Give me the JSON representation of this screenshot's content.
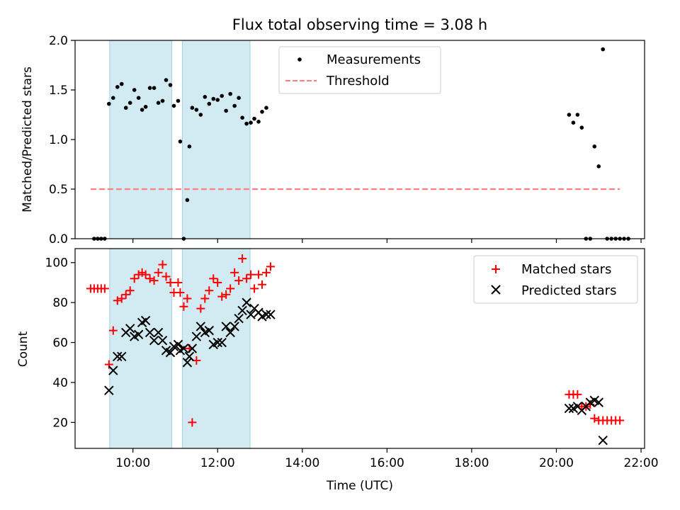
{
  "figure": {
    "title": "Flux total observing time = 3.08 h",
    "colors": {
      "measurement": "#000000",
      "threshold": "#ff7f7f",
      "matched": "#ff0000",
      "predicted": "#000000",
      "shade": "#add8e6"
    }
  },
  "chart_data": [
    {
      "type": "scatter",
      "title": "Flux total observing time = 3.08 h",
      "ylabel": "Matched/Predicted stars",
      "xlabel": "",
      "xlim": [
        "09:00",
        "22:00"
      ],
      "ylim": [
        0,
        2.0
      ],
      "yticks": [
        "0.0",
        "0.5",
        "1.0",
        "1.5",
        "2.0"
      ],
      "grid": false,
      "legend": "top-center",
      "shaded_spans": [
        [
          "09:27",
          "10:55"
        ],
        [
          "11:10",
          "12:46"
        ]
      ],
      "series": [
        {
          "name": "Measurements",
          "kind": "points",
          "color": "#000000",
          "points": [
            [
              "09:05",
              0.0
            ],
            [
              "09:10",
              0.0
            ],
            [
              "09:15",
              0.0
            ],
            [
              "09:20",
              0.0
            ],
            [
              "09:26",
              1.36
            ],
            [
              "09:32",
              1.42
            ],
            [
              "09:38",
              1.53
            ],
            [
              "09:44",
              1.56
            ],
            [
              "09:50",
              1.32
            ],
            [
              "09:56",
              1.37
            ],
            [
              "10:02",
              1.5
            ],
            [
              "10:08",
              1.42
            ],
            [
              "10:13",
              1.3
            ],
            [
              "10:18",
              1.33
            ],
            [
              "10:24",
              1.52
            ],
            [
              "10:30",
              1.52
            ],
            [
              "10:36",
              1.37
            ],
            [
              "10:42",
              1.39
            ],
            [
              "10:47",
              1.6
            ],
            [
              "10:53",
              1.55
            ],
            [
              "10:58",
              1.34
            ],
            [
              "11:04",
              1.39
            ],
            [
              "11:07",
              0.98
            ],
            [
              "11:12",
              0.0
            ],
            [
              "11:17",
              0.39
            ],
            [
              "11:20",
              0.93
            ],
            [
              "11:24",
              1.32
            ],
            [
              "11:30",
              1.3
            ],
            [
              "11:36",
              1.25
            ],
            [
              "11:42",
              1.43
            ],
            [
              "11:48",
              1.36
            ],
            [
              "11:54",
              1.41
            ],
            [
              "12:00",
              1.4
            ],
            [
              "12:06",
              1.44
            ],
            [
              "12:12",
              1.29
            ],
            [
              "12:18",
              1.46
            ],
            [
              "12:24",
              1.34
            ],
            [
              "12:30",
              1.42
            ],
            [
              "12:35",
              1.22
            ],
            [
              "12:41",
              1.16
            ],
            [
              "12:47",
              1.17
            ],
            [
              "12:52",
              1.21
            ],
            [
              "12:58",
              1.18
            ],
            [
              "13:03",
              1.28
            ],
            [
              "13:09",
              1.32
            ],
            [
              "20:18",
              1.25
            ],
            [
              "20:24",
              1.17
            ],
            [
              "20:30",
              1.25
            ],
            [
              "20:36",
              1.12
            ],
            [
              "20:42",
              0.0
            ],
            [
              "20:48",
              0.0
            ],
            [
              "20:54",
              0.93
            ],
            [
              "21:00",
              0.73
            ],
            [
              "21:06",
              1.91
            ],
            [
              "21:12",
              0.0
            ],
            [
              "21:18",
              0.0
            ],
            [
              "21:24",
              0.0
            ],
            [
              "21:30",
              0.0
            ],
            [
              "21:36",
              0.0
            ],
            [
              "21:42",
              0.0
            ]
          ]
        },
        {
          "name": "Threshold",
          "kind": "dashed-line",
          "color": "#ff7f7f",
          "points": [
            [
              "09:00",
              0.5
            ],
            [
              "21:30",
              0.5
            ]
          ]
        }
      ]
    },
    {
      "type": "scatter",
      "title": "",
      "xlabel": "Time (UTC)",
      "ylabel": "Count",
      "xlim": [
        "08:38",
        "22:05"
      ],
      "ylim": [
        7,
        107
      ],
      "yticks": [
        "20",
        "40",
        "60",
        "80",
        "100"
      ],
      "xticks": [
        "10:00",
        "12:00",
        "14:00",
        "16:00",
        "18:00",
        "20:00",
        "22:00"
      ],
      "grid": false,
      "legend": "top-right",
      "shaded_spans": [
        [
          "09:27",
          "10:55"
        ],
        [
          "11:10",
          "12:46"
        ]
      ],
      "series": [
        {
          "name": "Matched stars",
          "kind": "plus",
          "color": "#ff0000",
          "points": [
            [
              "09:00",
              87
            ],
            [
              "09:05",
              87
            ],
            [
              "09:10",
              87
            ],
            [
              "09:15",
              87
            ],
            [
              "09:20",
              87
            ],
            [
              "09:26",
              49
            ],
            [
              "09:32",
              66
            ],
            [
              "09:38",
              81
            ],
            [
              "09:44",
              82
            ],
            [
              "09:50",
              84
            ],
            [
              "09:56",
              86
            ],
            [
              "10:02",
              92
            ],
            [
              "10:08",
              94
            ],
            [
              "10:13",
              95
            ],
            [
              "10:18",
              94
            ],
            [
              "10:24",
              92
            ],
            [
              "10:30",
              91
            ],
            [
              "10:36",
              95
            ],
            [
              "10:42",
              99
            ],
            [
              "10:47",
              93
            ],
            [
              "10:53",
              90
            ],
            [
              "10:58",
              85
            ],
            [
              "11:04",
              90
            ],
            [
              "11:07",
              85
            ],
            [
              "11:12",
              78
            ],
            [
              "11:17",
              82
            ],
            [
              "11:20",
              57
            ],
            [
              "11:24",
              20
            ],
            [
              "11:30",
              51
            ],
            [
              "11:36",
              77
            ],
            [
              "11:42",
              82
            ],
            [
              "11:48",
              86
            ],
            [
              "11:54",
              92
            ],
            [
              "12:00",
              90
            ],
            [
              "12:06",
              83
            ],
            [
              "12:12",
              84
            ],
            [
              "12:18",
              87
            ],
            [
              "12:24",
              95
            ],
            [
              "12:30",
              91
            ],
            [
              "12:35",
              102
            ],
            [
              "12:41",
              92
            ],
            [
              "12:47",
              94
            ],
            [
              "12:52",
              87
            ],
            [
              "12:58",
              94
            ],
            [
              "13:03",
              89
            ],
            [
              "13:09",
              95
            ],
            [
              "13:15",
              98
            ],
            [
              "20:18",
              34
            ],
            [
              "20:24",
              34
            ],
            [
              "20:30",
              34
            ],
            [
              "20:36",
              28
            ],
            [
              "20:42",
              28
            ],
            [
              "20:48",
              29
            ],
            [
              "20:54",
              22
            ],
            [
              "21:00",
              21
            ],
            [
              "21:06",
              21
            ],
            [
              "21:12",
              21
            ],
            [
              "21:18",
              21
            ],
            [
              "21:24",
              21
            ],
            [
              "21:30",
              21
            ]
          ]
        },
        {
          "name": "Predicted stars",
          "kind": "x",
          "color": "#000000",
          "points": [
            [
              "09:26",
              36
            ],
            [
              "09:32",
              46
            ],
            [
              "09:38",
              53
            ],
            [
              "09:44",
              53
            ],
            [
              "09:50",
              65
            ],
            [
              "09:56",
              67
            ],
            [
              "10:02",
              63
            ],
            [
              "10:08",
              64
            ],
            [
              "10:13",
              70
            ],
            [
              "10:18",
              71
            ],
            [
              "10:24",
              65
            ],
            [
              "10:30",
              61
            ],
            [
              "10:36",
              65
            ],
            [
              "10:42",
              61
            ],
            [
              "10:47",
              56
            ],
            [
              "10:53",
              55
            ],
            [
              "10:58",
              58
            ],
            [
              "11:04",
              59
            ],
            [
              "11:07",
              56
            ],
            [
              "11:12",
              57
            ],
            [
              "11:17",
              50
            ],
            [
              "11:20",
              53
            ],
            [
              "11:24",
              57
            ],
            [
              "11:30",
              63
            ],
            [
              "11:36",
              68
            ],
            [
              "11:42",
              65
            ],
            [
              "11:48",
              66
            ],
            [
              "11:54",
              59
            ],
            [
              "12:00",
              60
            ],
            [
              "12:06",
              60
            ],
            [
              "12:12",
              68
            ],
            [
              "12:18",
              65
            ],
            [
              "12:24",
              68
            ],
            [
              "12:30",
              72
            ],
            [
              "12:35",
              76
            ],
            [
              "12:41",
              80
            ],
            [
              "12:47",
              74
            ],
            [
              "12:52",
              77
            ],
            [
              "12:58",
              75
            ],
            [
              "13:03",
              73
            ],
            [
              "13:09",
              74
            ],
            [
              "13:15",
              74
            ],
            [
              "20:18",
              27
            ],
            [
              "20:24",
              27
            ],
            [
              "20:30",
              28
            ],
            [
              "20:36",
              26
            ],
            [
              "20:42",
              28
            ],
            [
              "20:48",
              30
            ],
            [
              "20:54",
              31
            ],
            [
              "21:00",
              30
            ],
            [
              "21:06",
              11
            ]
          ]
        }
      ]
    }
  ]
}
